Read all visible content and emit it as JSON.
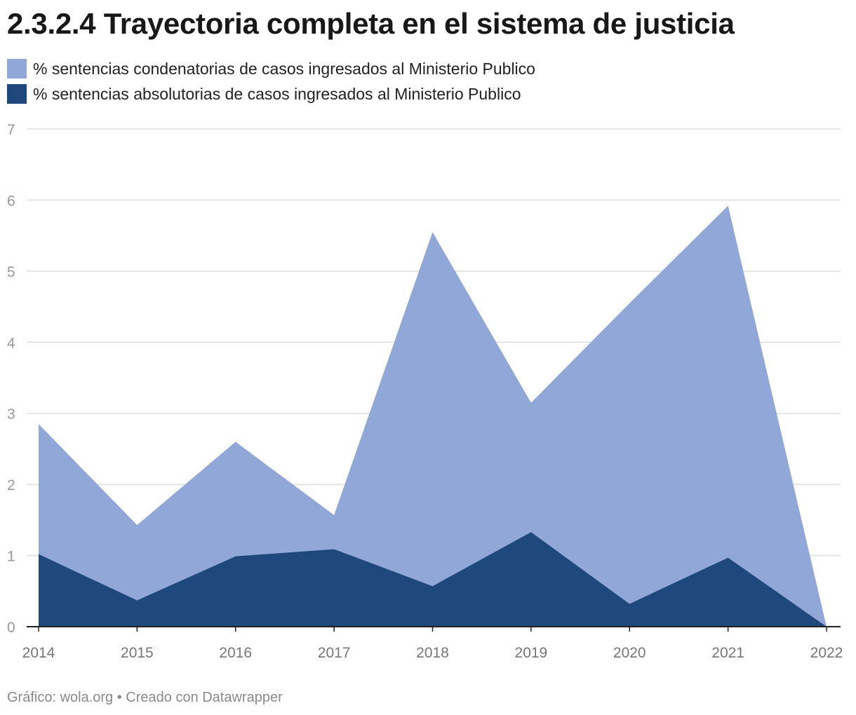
{
  "chart_data": {
    "type": "area",
    "title": "2.3.2.4 Trayectoria completa en el sistema de justicia",
    "xlabel": "",
    "ylabel": "",
    "x": [
      "2014",
      "2015",
      "2016",
      "2017",
      "2018",
      "2019",
      "2020",
      "2021",
      "2022"
    ],
    "y_ticks": [
      "0",
      "1",
      "2",
      "3",
      "4",
      "5",
      "6",
      "7"
    ],
    "ylim": [
      0,
      7
    ],
    "grid": true,
    "legend_placement": "top-left",
    "series": [
      {
        "name": "% sentencias condenatorias de casos ingresados al Ministerio Publico",
        "color": "#91a7d7",
        "values": [
          2.85,
          1.43,
          2.6,
          1.57,
          5.55,
          3.15,
          4.55,
          5.92,
          0
        ]
      },
      {
        "name": "% sentencias absolutorias de casos ingresados al Ministerio Publico",
        "color": "#1f497d",
        "values": [
          1.02,
          0.37,
          0.99,
          1.09,
          0.57,
          1.33,
          0.32,
          0.97,
          0
        ]
      }
    ]
  },
  "footer": {
    "credit": "Gráfico: wola.org • Creado con Datawrapper"
  }
}
